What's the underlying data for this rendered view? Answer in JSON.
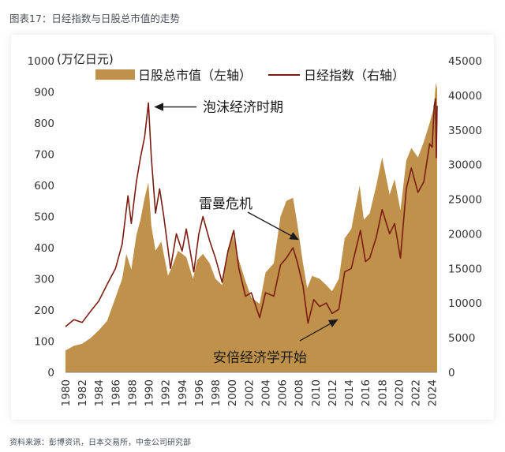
{
  "figure_title": "图表17：日经指数与日股总市值的走势",
  "source_note": "资料来源：彭博资讯，日本交易所，中金公司研究部",
  "colors": {
    "area": "#c0914a",
    "line": "#7a1c12",
    "text": "#1a1a1a"
  },
  "chart_data": {
    "type": "area",
    "unit_label": "(万亿日元)",
    "legend": [
      "日股总市值（左轴）",
      "日经指数（右轴）"
    ],
    "legend_position": "top-center",
    "y_left": {
      "min": 0,
      "max": 1000,
      "ticks": [
        0,
        100,
        200,
        300,
        400,
        500,
        600,
        700,
        800,
        900,
        1000
      ]
    },
    "y_right": {
      "min": 0,
      "max": 45000,
      "ticks": [
        0,
        5000,
        10000,
        15000,
        20000,
        25000,
        30000,
        35000,
        40000,
        45000
      ]
    },
    "x_range": [
      1980,
      2024.6
    ],
    "x_ticks": [
      "1980",
      "1982",
      "1984",
      "1986",
      "1988",
      "1990",
      "1992",
      "1994",
      "1996",
      "1998",
      "2000",
      "2002",
      "2004",
      "2006",
      "2008",
      "2010",
      "2012",
      "2014",
      "2016",
      "2018",
      "2020",
      "2022",
      "2024"
    ],
    "series": [
      {
        "name": "日股总市值（左轴）",
        "type": "area",
        "axis": "left",
        "points": [
          [
            1980.0,
            70
          ],
          [
            1981.0,
            85
          ],
          [
            1982.0,
            92
          ],
          [
            1983.0,
            110
          ],
          [
            1984.0,
            135
          ],
          [
            1985.0,
            165
          ],
          [
            1986.0,
            240
          ],
          [
            1986.8,
            300
          ],
          [
            1987.3,
            380
          ],
          [
            1987.9,
            330
          ],
          [
            1988.5,
            440
          ],
          [
            1989.0,
            490
          ],
          [
            1989.5,
            560
          ],
          [
            1989.95,
            610
          ],
          [
            1990.3,
            470
          ],
          [
            1990.8,
            390
          ],
          [
            1991.5,
            420
          ],
          [
            1992.3,
            310
          ],
          [
            1992.8,
            340
          ],
          [
            1993.5,
            390
          ],
          [
            1994.5,
            370
          ],
          [
            1995.3,
            300
          ],
          [
            1995.8,
            360
          ],
          [
            1996.5,
            380
          ],
          [
            1997.3,
            350
          ],
          [
            1998.0,
            300
          ],
          [
            1998.8,
            280
          ],
          [
            1999.5,
            380
          ],
          [
            2000.0,
            450
          ],
          [
            2000.7,
            370
          ],
          [
            2001.5,
            300
          ],
          [
            2002.3,
            240
          ],
          [
            2003.3,
            220
          ],
          [
            2004.0,
            320
          ],
          [
            2005.0,
            350
          ],
          [
            2005.8,
            500
          ],
          [
            2006.5,
            550
          ],
          [
            2007.3,
            560
          ],
          [
            2007.8,
            480
          ],
          [
            2008.5,
            350
          ],
          [
            2009.0,
            270
          ],
          [
            2009.6,
            310
          ],
          [
            2010.5,
            300
          ],
          [
            2011.3,
            280
          ],
          [
            2012.0,
            260
          ],
          [
            2012.8,
            300
          ],
          [
            2013.5,
            430
          ],
          [
            2014.3,
            460
          ],
          [
            2015.3,
            600
          ],
          [
            2015.8,
            490
          ],
          [
            2016.5,
            510
          ],
          [
            2017.3,
            600
          ],
          [
            2018.0,
            690
          ],
          [
            2018.9,
            570
          ],
          [
            2019.5,
            620
          ],
          [
            2020.2,
            520
          ],
          [
            2020.9,
            680
          ],
          [
            2021.5,
            720
          ],
          [
            2022.3,
            690
          ],
          [
            2023.0,
            740
          ],
          [
            2023.7,
            800
          ],
          [
            2024.2,
            850
          ],
          [
            2024.45,
            930
          ],
          [
            2024.6,
            910
          ]
        ]
      },
      {
        "name": "日经指数（右轴）",
        "type": "line",
        "axis": "right",
        "points": [
          [
            1980.0,
            6600
          ],
          [
            1981.0,
            7600
          ],
          [
            1982.0,
            7200
          ],
          [
            1983.0,
            8800
          ],
          [
            1984.0,
            10300
          ],
          [
            1985.0,
            12700
          ],
          [
            1986.0,
            15000
          ],
          [
            1986.8,
            18500
          ],
          [
            1987.5,
            25500
          ],
          [
            1987.9,
            21500
          ],
          [
            1988.5,
            27500
          ],
          [
            1989.0,
            31000
          ],
          [
            1989.5,
            34000
          ],
          [
            1989.95,
            38900
          ],
          [
            1990.3,
            31000
          ],
          [
            1990.8,
            23000
          ],
          [
            1991.3,
            26500
          ],
          [
            1991.8,
            22500
          ],
          [
            1992.6,
            15000
          ],
          [
            1993.3,
            20000
          ],
          [
            1994.0,
            17500
          ],
          [
            1994.5,
            20700
          ],
          [
            1995.4,
            14500
          ],
          [
            1996.0,
            20000
          ],
          [
            1996.5,
            22500
          ],
          [
            1997.3,
            19000
          ],
          [
            1998.0,
            16500
          ],
          [
            1998.8,
            13000
          ],
          [
            1999.5,
            17500
          ],
          [
            2000.2,
            20500
          ],
          [
            2000.8,
            15000
          ],
          [
            2001.6,
            11000
          ],
          [
            2002.3,
            11500
          ],
          [
            2003.3,
            7900
          ],
          [
            2004.0,
            11500
          ],
          [
            2005.0,
            11000
          ],
          [
            2005.8,
            15500
          ],
          [
            2006.5,
            16500
          ],
          [
            2007.3,
            18000
          ],
          [
            2007.8,
            16000
          ],
          [
            2008.5,
            12500
          ],
          [
            2009.1,
            7100
          ],
          [
            2009.8,
            10500
          ],
          [
            2010.5,
            9500
          ],
          [
            2011.3,
            10000
          ],
          [
            2012.0,
            8500
          ],
          [
            2012.8,
            9100
          ],
          [
            2013.5,
            14500
          ],
          [
            2014.3,
            15000
          ],
          [
            2015.4,
            20500
          ],
          [
            2016.0,
            16000
          ],
          [
            2016.5,
            16500
          ],
          [
            2017.3,
            19500
          ],
          [
            2018.0,
            23500
          ],
          [
            2018.9,
            20000
          ],
          [
            2019.5,
            21500
          ],
          [
            2020.2,
            16500
          ],
          [
            2020.9,
            26500
          ],
          [
            2021.5,
            29500
          ],
          [
            2022.3,
            26000
          ],
          [
            2023.0,
            27500
          ],
          [
            2023.7,
            33000
          ],
          [
            2024.0,
            32500
          ],
          [
            2024.25,
            38500
          ],
          [
            2024.4,
            39500
          ],
          [
            2024.5,
            31000
          ],
          [
            2024.6,
            38500
          ]
        ]
      }
    ],
    "annotations": [
      {
        "text": "泡沫经济时期",
        "x": 1990.0,
        "y_right": 38900
      },
      {
        "text": "雷曼危机",
        "x": 2008.3,
        "y_right": 18500
      },
      {
        "text": "安倍经济学开始",
        "x": 2012.9,
        "y_right": 8500
      }
    ]
  }
}
